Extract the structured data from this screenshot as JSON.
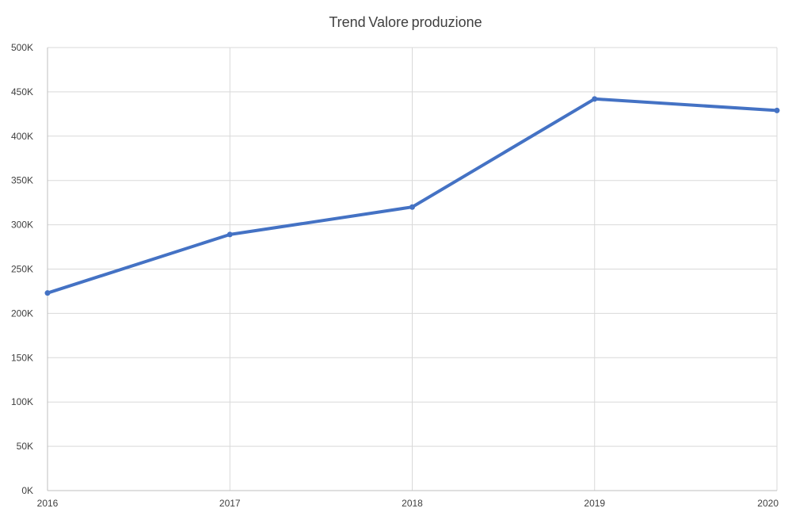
{
  "chart_data": {
    "type": "line",
    "title": "Trend Valore produzione",
    "xlabel": "",
    "ylabel": "",
    "categories": [
      "2016",
      "2017",
      "2018",
      "2019",
      "2020"
    ],
    "series": [
      {
        "values": [
          223000,
          289000,
          320000,
          442000,
          429000
        ],
        "color": "#4472c4"
      }
    ],
    "ylim": [
      0,
      500000
    ],
    "y_ticks": [
      0,
      50000,
      100000,
      150000,
      200000,
      250000,
      300000,
      350000,
      400000,
      450000,
      500000
    ],
    "y_tick_labels": [
      "0K",
      "50K",
      "100K",
      "150K",
      "200K",
      "250K",
      "300K",
      "350K",
      "400K",
      "450K",
      "500K"
    ],
    "grid": true,
    "legend": "none",
    "markers": true
  }
}
